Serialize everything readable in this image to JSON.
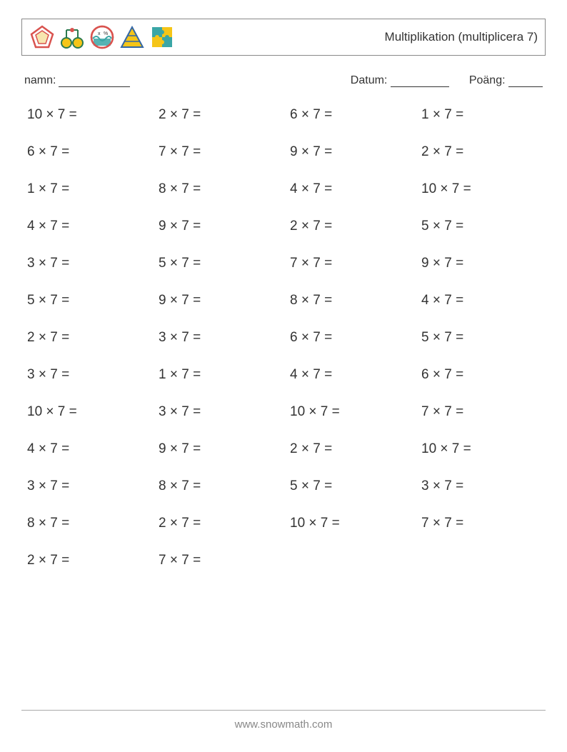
{
  "header": {
    "title": "Multiplikation (multiplicera 7)"
  },
  "info": {
    "name_label": "namn:",
    "date_label": "Datum:",
    "score_label": "Poäng:"
  },
  "icons": {
    "pentagon_color": "#d9534f",
    "circle1_fill": "#f5c518",
    "circle1_stroke": "#2a7a4f",
    "wave_color": "#3aa6a6",
    "wave_circle": "#d9534f",
    "triangle_fill": "#f5c518",
    "triangle_stroke": "#3367a6",
    "puzzle1": "#3aa6a6",
    "puzzle2": "#f5c518"
  },
  "problems": [
    [
      "10 × 7 =",
      "2 × 7 =",
      "6 × 7 =",
      "1 × 7 ="
    ],
    [
      "6 × 7 =",
      "7 × 7 =",
      "9 × 7 =",
      "2 × 7 ="
    ],
    [
      "1 × 7 =",
      "8 × 7 =",
      "4 × 7 =",
      "10 × 7 ="
    ],
    [
      "4 × 7 =",
      "9 × 7 =",
      "2 × 7 =",
      "5 × 7 ="
    ],
    [
      "3 × 7 =",
      "5 × 7 =",
      "7 × 7 =",
      "9 × 7 ="
    ],
    [
      "5 × 7 =",
      "9 × 7 =",
      "8 × 7 =",
      "4 × 7 ="
    ],
    [
      "2 × 7 =",
      "3 × 7 =",
      "6 × 7 =",
      "5 × 7 ="
    ],
    [
      "3 × 7 =",
      "1 × 7 =",
      "4 × 7 =",
      "6 × 7 ="
    ],
    [
      "10 × 7 =",
      "3 × 7 =",
      "10 × 7 =",
      "7 × 7 ="
    ],
    [
      "4 × 7 =",
      "9 × 7 =",
      "2 × 7 =",
      "10 × 7 ="
    ],
    [
      "3 × 7 =",
      "8 × 7 =",
      "5 × 7 =",
      "3 × 7 ="
    ],
    [
      "8 × 7 =",
      "2 × 7 =",
      "10 × 7 =",
      "7 × 7 ="
    ],
    [
      "2 × 7 =",
      "7 × 7 =",
      "",
      ""
    ]
  ],
  "footer": {
    "url": "www.snowmath.com"
  }
}
